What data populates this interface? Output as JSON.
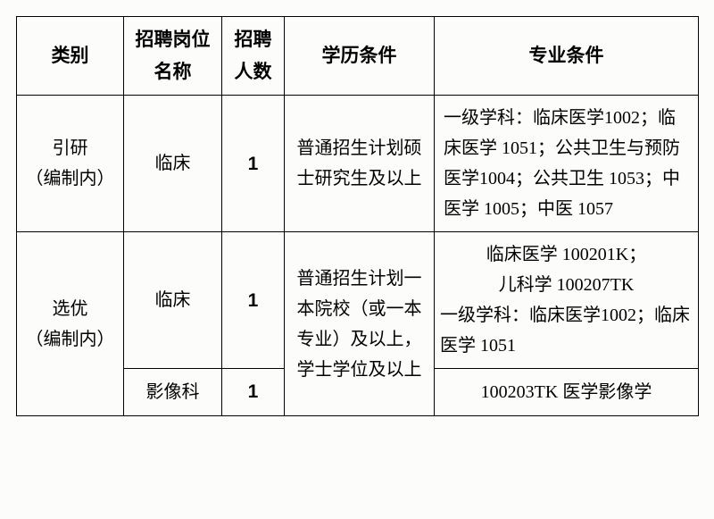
{
  "header": {
    "category": "类别",
    "position": "招聘岗位名称",
    "count": "招聘人数",
    "education": "学历条件",
    "major": "专业条件"
  },
  "rows": {
    "r1": {
      "category_l1": "引研",
      "category_l2": "（编制内）",
      "position": "临床",
      "count": "1",
      "education": "普通招生计划硕士研究生及以上",
      "major": "一级学科：临床医学1002；临床医学 1051；公共卫生与预防医学1004；公共卫生 1053；中医学 1005；中医 1057"
    },
    "r2": {
      "category_l1": "选优",
      "category_l2": "（编制内）",
      "position": "临床",
      "count": "1",
      "education": "普通招生计划一本院校（或一本专业）及以上，学士学位及以上",
      "major_l1": "临床医学 100201K；",
      "major_l2": "儿科学 100207TK",
      "major_l3": "一级学科：临床医学1002；临床医学 1051"
    },
    "r3": {
      "position": "影像科",
      "count": "1",
      "major": "100203TK 医学影像学"
    }
  }
}
